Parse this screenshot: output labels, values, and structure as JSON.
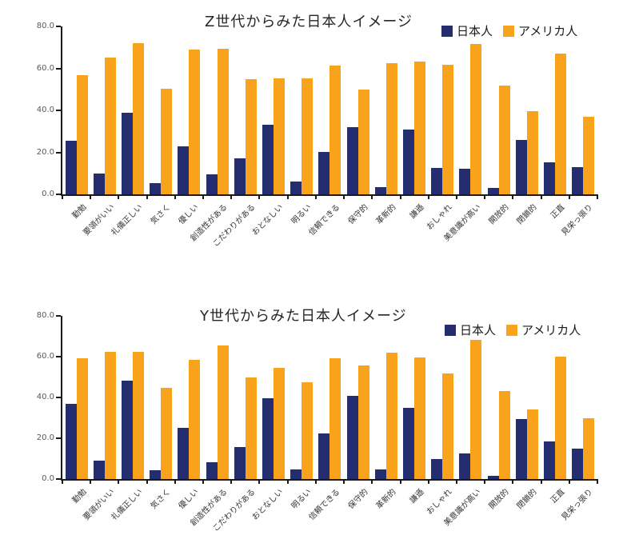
{
  "colors": {
    "japanese_series": "#232D6F",
    "american_series": "#F9A21B",
    "axis": "#1a1a1a",
    "tick_label": "#595959"
  },
  "chart_data": [
    {
      "type": "bar",
      "title": "Z世代からみた日本人イメージ",
      "xlabel": "",
      "ylabel": "",
      "ylim": [
        0,
        80
      ],
      "ytick_labels": [
        "80.0",
        "60.0",
        "40.0",
        "20.0",
        "0.0"
      ],
      "grid": false,
      "legend_position": "top-right",
      "categories": [
        "勤勉",
        "要領がいい",
        "礼儀正しい",
        "気さく",
        "優しい",
        "創造性がある",
        "こだわりがある",
        "おとなしい",
        "明るい",
        "信頼できる",
        "保守的",
        "革新的",
        "謙遜",
        "おしゃれ",
        "美意識が高い",
        "開放的",
        "閉鎖的",
        "正直",
        "見栄っ張り"
      ],
      "series": [
        {
          "name": "日本人",
          "key": "japanese",
          "color": "#232D6F",
          "values": [
            25.5,
            9.8,
            39.0,
            5.2,
            22.8,
            9.5,
            17.0,
            33.0,
            6.0,
            20.3,
            32.0,
            3.5,
            31.0,
            12.5,
            12.1,
            3.0,
            26.0,
            15.2,
            13.0
          ]
        },
        {
          "name": "アメリカ人",
          "key": "american",
          "color": "#F9A21B",
          "values": [
            56.8,
            65.3,
            72.0,
            50.3,
            68.8,
            69.2,
            54.8,
            55.3,
            55.2,
            61.2,
            50.0,
            62.5,
            63.3,
            61.9,
            71.8,
            51.8,
            39.6,
            67.0,
            36.8
          ]
        }
      ]
    },
    {
      "type": "bar",
      "title": "Y世代からみた日本人イメージ",
      "xlabel": "",
      "ylabel": "",
      "ylim": [
        0,
        80
      ],
      "ytick_labels": [
        "80.0",
        "60.0",
        "40.0",
        "20.0",
        "0.0"
      ],
      "grid": false,
      "legend_position": "top-right",
      "categories": [
        "勤勉",
        "要領がいい",
        "礼儀正しい",
        "気さく",
        "優しい",
        "創造性がある",
        "こだわりがある",
        "おとなしい",
        "明るい",
        "信頼できる",
        "保守的",
        "革新的",
        "謙遜",
        "おしゃれ",
        "美意識が高い",
        "開放的",
        "閉鎖的",
        "正直",
        "見栄っ張り"
      ],
      "series": [
        {
          "name": "日本人",
          "key": "japanese",
          "color": "#232D6F",
          "values": [
            37.0,
            9.0,
            48.3,
            4.4,
            25.2,
            8.1,
            15.6,
            39.5,
            4.8,
            22.4,
            40.8,
            4.8,
            34.8,
            9.9,
            12.4,
            1.6,
            29.6,
            18.4,
            14.8
          ]
        },
        {
          "name": "アメリカ人",
          "key": "american",
          "color": "#F9A21B",
          "values": [
            59.1,
            62.4,
            62.4,
            44.6,
            58.6,
            65.5,
            50.0,
            54.6,
            47.4,
            59.4,
            55.7,
            62.0,
            59.7,
            51.7,
            68.2,
            43.0,
            34.3,
            60.2,
            29.7
          ]
        }
      ]
    }
  ]
}
